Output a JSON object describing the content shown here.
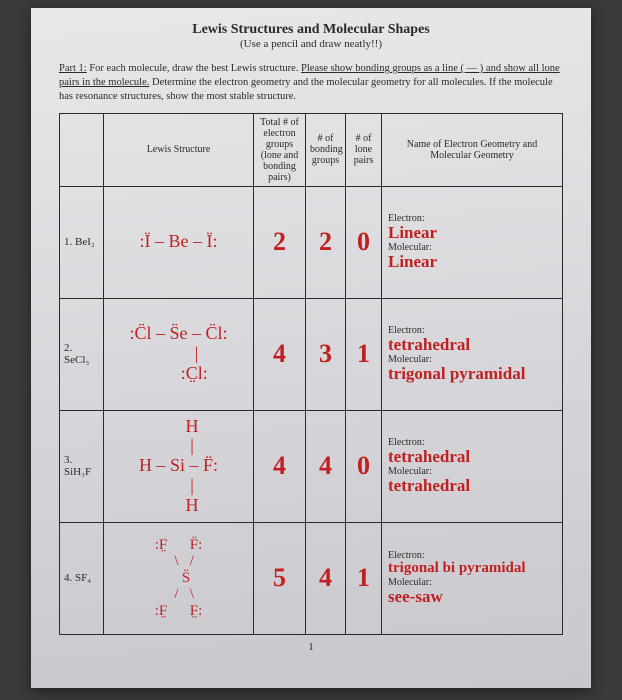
{
  "doc": {
    "title": "Lewis Structures and Molecular Shapes",
    "subtitle": "(Use a pencil and draw neatly!!)",
    "part_label": "Part 1:",
    "instructions_1": " For each molecule, draw the best Lewis structure. ",
    "instructions_u1": "Please show bonding groups as a line ( — ) and show all lone pairs in the molecule.",
    "instructions_2": " Determine the electron geometry and the molecular geometry for all molecules. If the molecule has resonance structures, show the most stable structure.",
    "pagenum": "1"
  },
  "headers": {
    "lewis": "Lewis Structure",
    "total": "Total # of electron groups (lone and bonding pairs)",
    "bonding": "# of bonding groups",
    "lone": "# of lone pairs",
    "geom": "Name of Electron Geometry and Molecular Geometry"
  },
  "labels": {
    "electron": "Electron:",
    "molecular": "Molecular:"
  },
  "rows": [
    {
      "mol": "1. BeI₂",
      "lewis": ":Ï – Be – Ï:",
      "total": "2",
      "bonding": "2",
      "lone": "0",
      "e_geom": "Linear",
      "m_geom": "Linear"
    },
    {
      "mol": "2. SeCl₃",
      "lewis": ":C̈l – S̈e – C̈l:\n        |\n       :C̤l:",
      "total": "4",
      "bonding": "3",
      "lone": "1",
      "e_geom": "tetrahedral",
      "m_geom": "trigonal pyramidal"
    },
    {
      "mol": "3. SiH₃F",
      "lewis": "      H\n      |\nH – Si – F̈:\n      |\n      H",
      "total": "4",
      "bonding": "4",
      "lone": "0",
      "e_geom": "tetrahedral",
      "m_geom": "tetrahedral"
    },
    {
      "mol": "4. SF₄",
      "lewis": ":F̤      F̈:\n   \\   /\n    S̈\n   /   \\\n:F̤      F̤:",
      "total": "5",
      "bonding": "4",
      "lone": "1",
      "e_geom": "trigonal bi pyramidal",
      "m_geom": "see-saw"
    }
  ]
}
